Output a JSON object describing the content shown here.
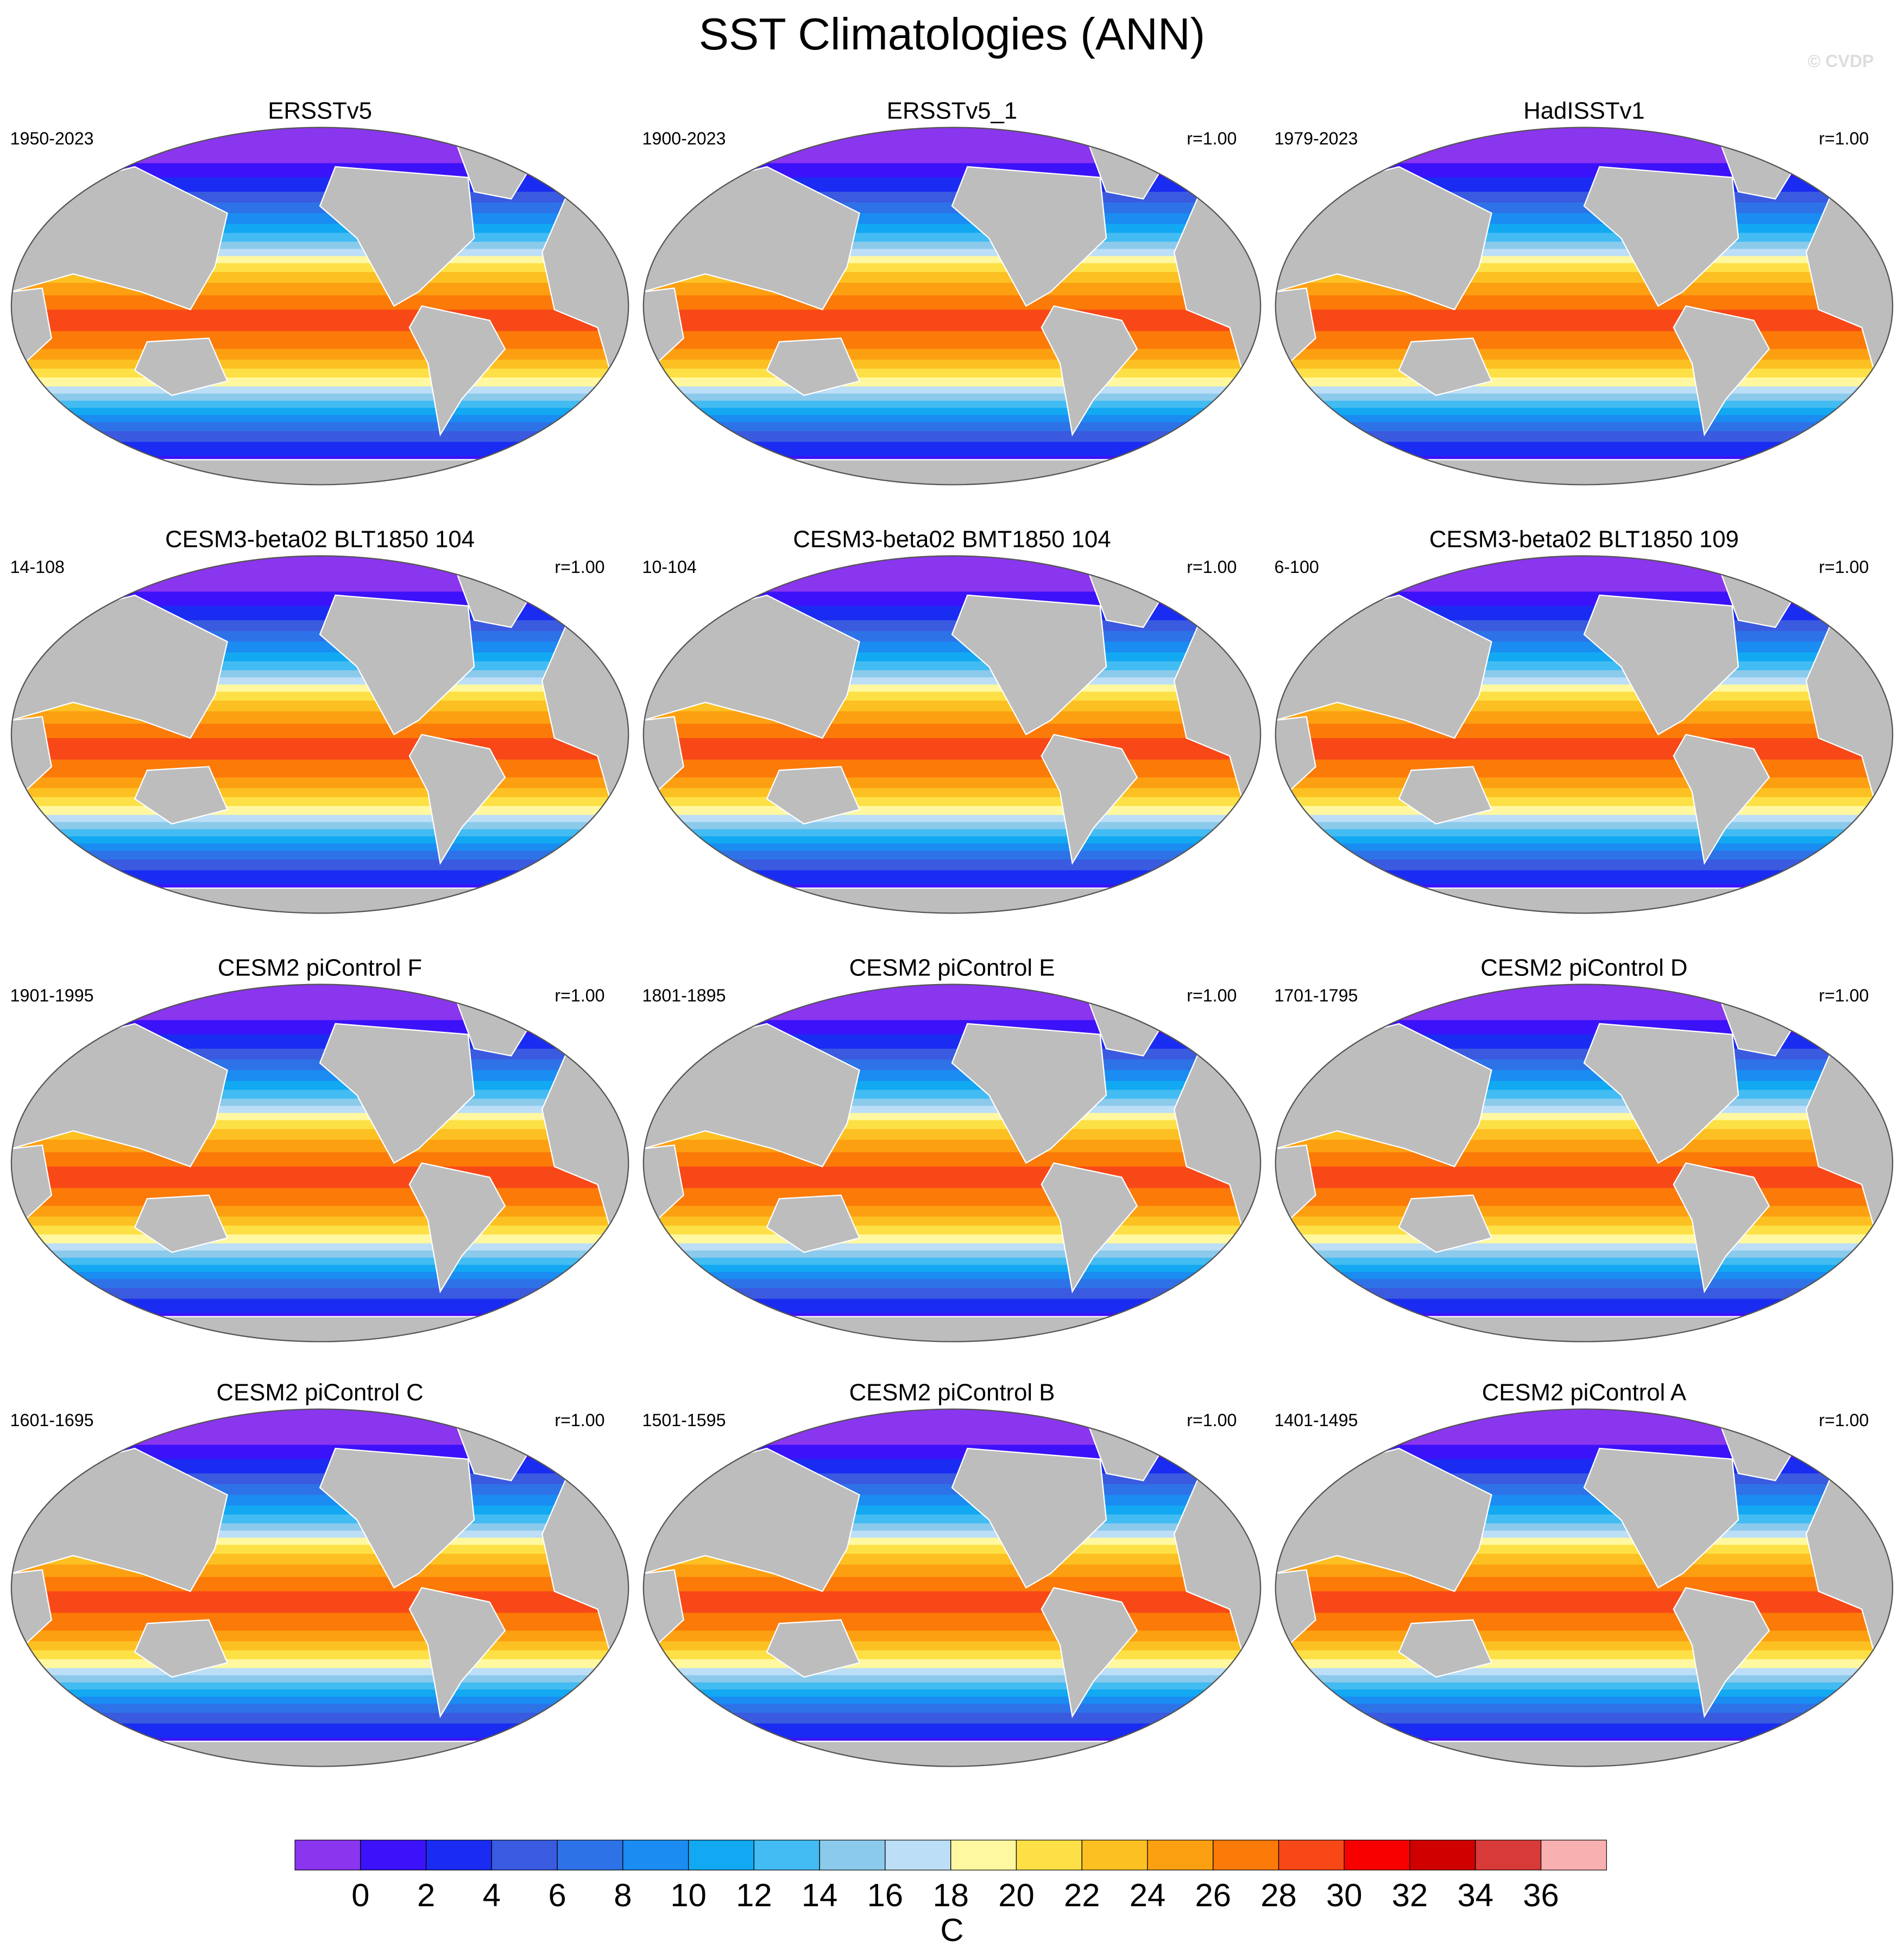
{
  "title": "SST Climatologies (ANN)",
  "watermark": "© CVDP",
  "panels": [
    {
      "title": "ERSSTv5",
      "period": "1950-2023"
    },
    {
      "title": "ERSSTv5_1",
      "period": "1900-2023",
      "r": "r=1.00"
    },
    {
      "title": "HadISSTv1",
      "period": "1979-2023",
      "r": "r=1.00"
    },
    {
      "title": "CESM3-beta02 BLT1850 104",
      "period": "14-108",
      "r": "r=1.00"
    },
    {
      "title": "CESM3-beta02 BMT1850 104",
      "period": "10-104",
      "r": "r=1.00"
    },
    {
      "title": "CESM3-beta02 BLT1850 109",
      "period": "6-100",
      "r": "r=1.00"
    },
    {
      "title": "CESM2 piControl F",
      "period": "1901-1995",
      "r": "r=1.00"
    },
    {
      "title": "CESM2 piControl E",
      "period": "1801-1895",
      "r": "r=1.00"
    },
    {
      "title": "CESM2 piControl D",
      "period": "1701-1795",
      "r": "r=1.00"
    },
    {
      "title": "CESM2 piControl C",
      "period": "1601-1695",
      "r": "r=1.00"
    },
    {
      "title": "CESM2 piControl B",
      "period": "1501-1595",
      "r": "r=1.00"
    },
    {
      "title": "CESM2 piControl A",
      "period": "1401-1495",
      "r": "r=1.00"
    }
  ],
  "colorbar": {
    "colors": [
      "#8a35ee",
      "#3c12fa",
      "#1a2cf2",
      "#3a5ae0",
      "#2e72e8",
      "#1a8cf2",
      "#12a8f2",
      "#42bcf2",
      "#8ccaec",
      "#bcdef6",
      "#fff8a0",
      "#fde046",
      "#fcc022",
      "#fca012",
      "#fc7a08",
      "#f84818",
      "#f80000",
      "#d00000",
      "#d83a3a",
      "#f8b0b0"
    ],
    "ticks": [
      0,
      2,
      4,
      6,
      8,
      10,
      12,
      14,
      16,
      18,
      20,
      22,
      24,
      26,
      28,
      30,
      32,
      34,
      36
    ],
    "label": "C"
  }
}
